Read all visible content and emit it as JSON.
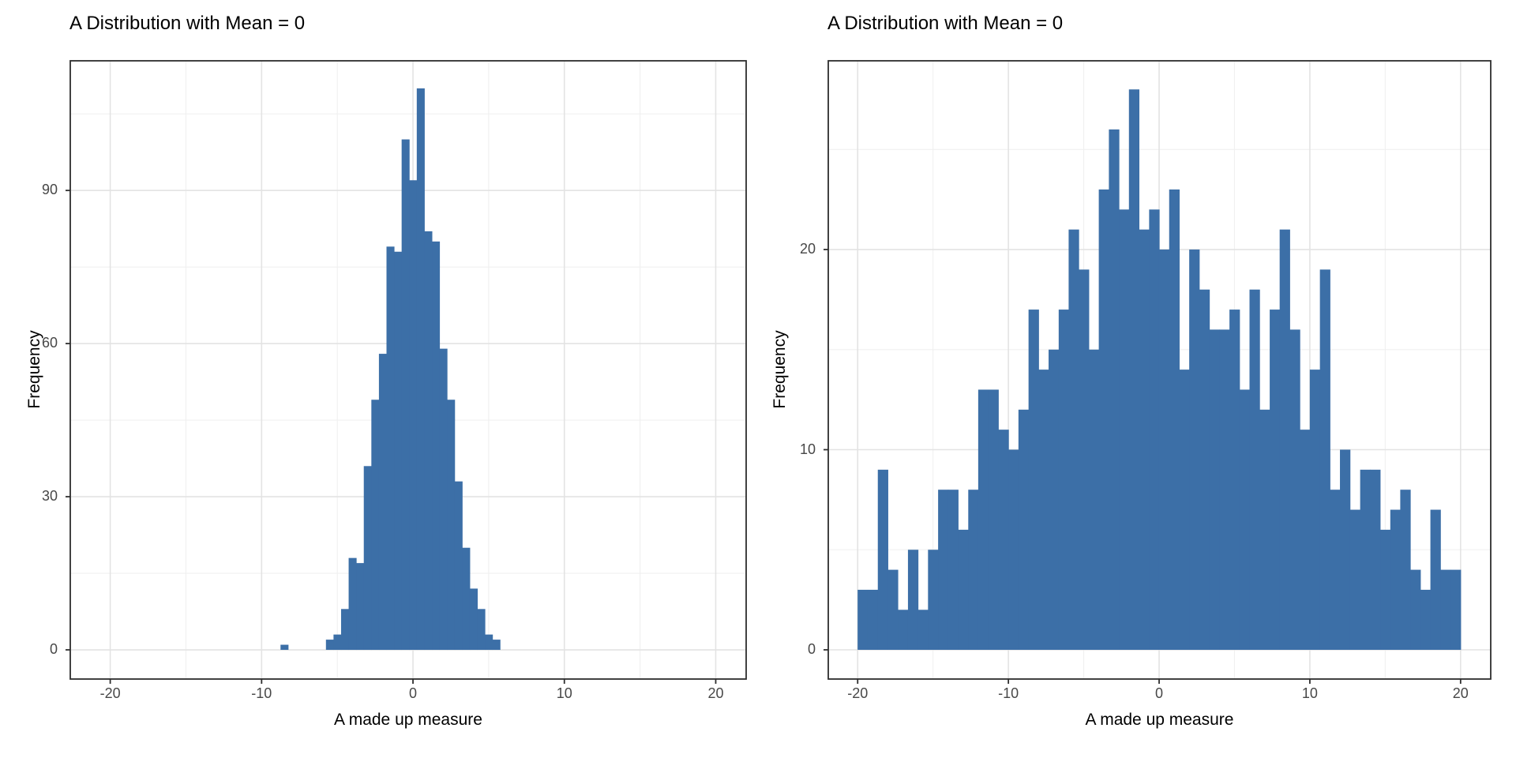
{
  "chart_data": [
    {
      "type": "bar",
      "subtype": "histogram",
      "title": "A Distribution with Mean = 0",
      "xlabel": "A made up measure",
      "ylabel": "Frequency",
      "bar_color": "#3C6FA7",
      "bin_width": 0.5,
      "bin_centers": [
        -8.5,
        -5.5,
        -5.0,
        -4.5,
        -4.0,
        -3.5,
        -3.0,
        -2.5,
        -2.0,
        -1.5,
        -1.0,
        -0.5,
        0.0,
        0.5,
        1.0,
        1.5,
        2.0,
        2.5,
        3.0,
        3.5,
        4.0,
        4.5,
        5.0,
        5.5
      ],
      "counts": [
        1,
        2,
        3,
        8,
        18,
        17,
        36,
        49,
        58,
        79,
        78,
        100,
        92,
        110,
        82,
        80,
        59,
        49,
        33,
        20,
        12,
        8,
        3,
        2
      ],
      "x_ticks": [
        -20,
        -10,
        0,
        10,
        20
      ],
      "y_ticks": [
        0,
        30,
        60,
        90
      ],
      "x_minor_gridlines": [
        -15,
        -5,
        5,
        15
      ],
      "y_minor_gridlines": [
        15,
        45,
        75,
        105
      ],
      "xlim": [
        -22.64,
        22.01
      ],
      "ylim": [
        -5.72,
        115.4
      ],
      "grid": "on",
      "legend": "none"
    },
    {
      "type": "bar",
      "subtype": "histogram",
      "title": "A Distribution with Mean = 0",
      "xlabel": "A made up measure",
      "ylabel": "Frequency",
      "bar_color": "#3C6FA7",
      "bin_width": 0.6667,
      "bin_centers": [
        -19.67,
        -19.0,
        -18.33,
        -17.67,
        -17.0,
        -16.33,
        -15.67,
        -15.0,
        -14.33,
        -13.67,
        -13.0,
        -12.33,
        -11.67,
        -11.0,
        -10.33,
        -9.67,
        -9.0,
        -8.33,
        -7.67,
        -7.0,
        -6.33,
        -5.67,
        -5.0,
        -4.33,
        -3.67,
        -3.0,
        -2.33,
        -1.67,
        -1.0,
        -0.33,
        0.33,
        1.0,
        1.67,
        2.33,
        3.0,
        3.67,
        4.33,
        5.0,
        5.67,
        6.33,
        7.0,
        7.67,
        8.33,
        9.0,
        9.67,
        10.33,
        11.0,
        11.67,
        12.33,
        13.0,
        13.67,
        14.33,
        15.0,
        15.67,
        16.33,
        17.0,
        17.67,
        18.33,
        19.0,
        19.67
      ],
      "counts": [
        3,
        3,
        9,
        4,
        2,
        5,
        2,
        5,
        8,
        8,
        6,
        8,
        13,
        13,
        11,
        10,
        12,
        17,
        14,
        15,
        17,
        21,
        19,
        15,
        23,
        26,
        22,
        28,
        21,
        22,
        20,
        23,
        14,
        20,
        18,
        16,
        16,
        17,
        13,
        18,
        12,
        17,
        21,
        16,
        11,
        14,
        19,
        8,
        10,
        7,
        9,
        9,
        6,
        7,
        8,
        4,
        3,
        7,
        4,
        4
      ],
      "x_ticks": [
        -20,
        -10,
        0,
        10,
        20
      ],
      "y_ticks": [
        0,
        10,
        20
      ],
      "x_minor_gridlines": [
        -15,
        -5,
        5,
        15
      ],
      "y_minor_gridlines": [
        5,
        15,
        25
      ],
      "xlim": [
        -21.95,
        22.0
      ],
      "ylim": [
        -1.46,
        29.43
      ],
      "grid": "on",
      "legend": "none"
    }
  ],
  "style": {
    "bar_fill": "#3C6FA7",
    "panel_border_color": "#2e2e2e",
    "major_grid_color": "#e3e3e3",
    "minor_grid_color": "#f0f0f0",
    "tick_label_color": "#474747",
    "background": "#ffffff"
  }
}
